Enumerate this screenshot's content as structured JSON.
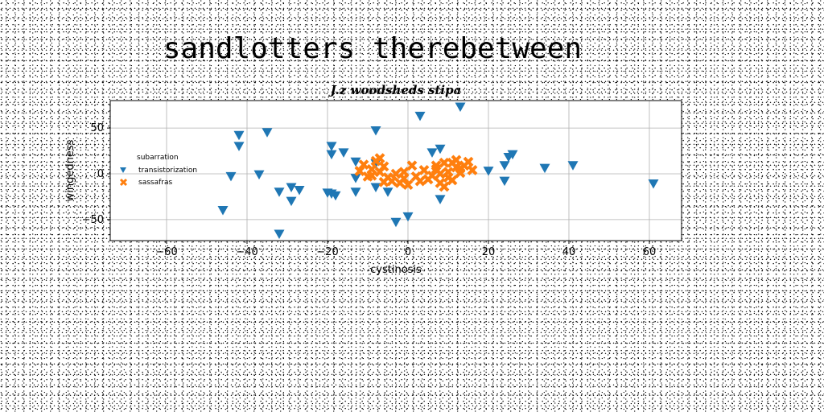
{
  "chart_data": {
    "type": "scatter",
    "suptitle": "sandlotters therebetween",
    "title": "J.z woodsheds stipa",
    "xlabel": "cystinosis",
    "ylabel": "wingedness",
    "xlim": [
      -74,
      68
    ],
    "ylim": [
      -73,
      80
    ],
    "xticks": [
      -60,
      -40,
      -20,
      0,
      20,
      40,
      60
    ],
    "yticks": [
      -50,
      0,
      50
    ],
    "xtick_labels": [
      "−60",
      "−40",
      "−20",
      "0",
      "20",
      "40",
      "60"
    ],
    "ytick_labels": [
      "−50",
      "0",
      "50"
    ],
    "grid": true,
    "legend": {
      "placement": "center-left",
      "title": "subarration",
      "entries": [
        "transistorization",
        "sassafras"
      ]
    },
    "series": [
      {
        "name": "transistorization",
        "marker": "triangle-down",
        "color": "#1f77b4",
        "points": [
          [
            13,
            73
          ],
          [
            3,
            63
          ],
          [
            -42,
            42
          ],
          [
            -35,
            45
          ],
          [
            -8,
            47
          ],
          [
            -42,
            30
          ],
          [
            -19,
            30
          ],
          [
            8,
            27
          ],
          [
            -16,
            23
          ],
          [
            6,
            23
          ],
          [
            -19,
            21
          ],
          [
            26,
            21
          ],
          [
            -13,
            13
          ],
          [
            25,
            18
          ],
          [
            24,
            9
          ],
          [
            -8,
            11
          ],
          [
            34,
            6
          ],
          [
            41,
            9
          ],
          [
            20,
            3
          ],
          [
            -44,
            -3
          ],
          [
            -37,
            -1
          ],
          [
            -13,
            -5
          ],
          [
            24,
            -8
          ],
          [
            61,
            -11
          ],
          [
            -8,
            -15
          ],
          [
            -5,
            -20
          ],
          [
            -29,
            -15
          ],
          [
            -13,
            -20
          ],
          [
            -27,
            -18
          ],
          [
            -32,
            -20
          ],
          [
            -19,
            -22
          ],
          [
            -20,
            -21
          ],
          [
            -18,
            -24
          ],
          [
            8,
            -28
          ],
          [
            -29,
            -30
          ],
          [
            -46,
            -40
          ],
          [
            0,
            -47
          ],
          [
            -3,
            -53
          ],
          [
            -32,
            -66
          ]
        ]
      },
      {
        "name": "sassafras",
        "marker": "x",
        "color": "#ff7f0e",
        "points": [
          [
            -7,
            17
          ],
          [
            -11,
            10
          ],
          [
            -9,
            5
          ],
          [
            -8,
            14
          ],
          [
            -12,
            3
          ],
          [
            -10,
            -3
          ],
          [
            -6,
            8
          ],
          [
            -5,
            -4
          ],
          [
            -4,
            -8
          ],
          [
            -3,
            0
          ],
          [
            -2,
            -10
          ],
          [
            -1,
            -5
          ],
          [
            0,
            -12
          ],
          [
            1,
            9
          ],
          [
            2,
            -3
          ],
          [
            3,
            -8
          ],
          [
            4,
            4
          ],
          [
            5,
            -6
          ],
          [
            6,
            -2
          ],
          [
            7,
            5
          ],
          [
            8,
            -10
          ],
          [
            9,
            12
          ],
          [
            10,
            2
          ],
          [
            11,
            -7
          ],
          [
            12,
            15
          ],
          [
            13,
            6
          ],
          [
            14,
            9
          ],
          [
            15,
            13
          ],
          [
            16,
            4
          ],
          [
            11,
            12
          ],
          [
            9,
            -14
          ],
          [
            7,
            9
          ],
          [
            -1,
            2
          ],
          [
            -6,
            -9
          ],
          [
            -9,
            -2
          ],
          [
            8,
            0
          ],
          [
            13,
            1
          ],
          [
            10,
            -4
          ],
          [
            12,
            7
          ],
          [
            -7,
            2
          ]
        ]
      }
    ]
  }
}
